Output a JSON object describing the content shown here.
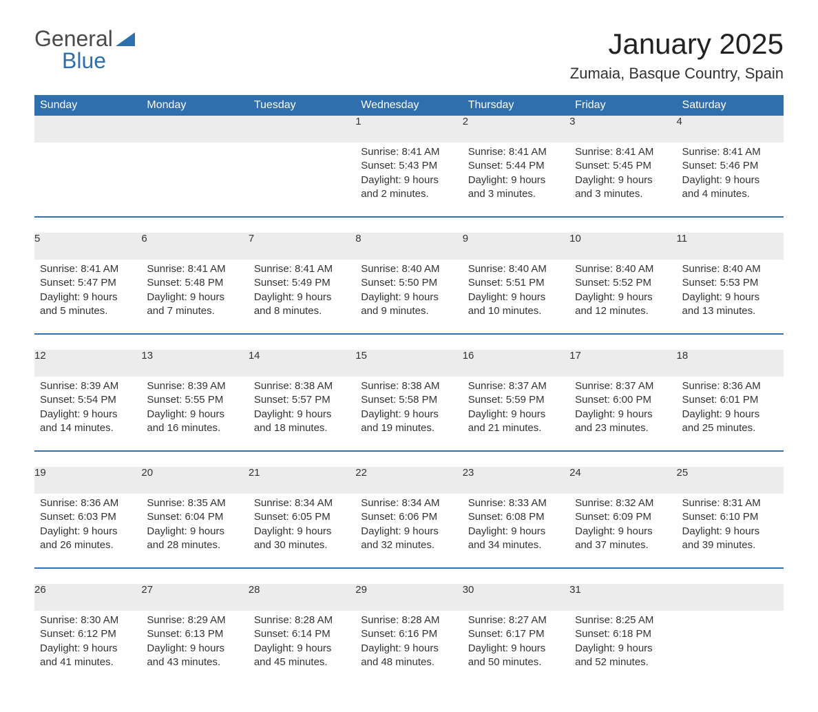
{
  "brand": {
    "general": "General",
    "blue": "Blue",
    "logo_color": "#2f6fad"
  },
  "title": "January 2025",
  "location": "Zumaia, Basque Country, Spain",
  "colors": {
    "header_bg": "#2f6fad",
    "header_text": "#ffffff",
    "daynum_bg": "#ececec",
    "daynum_text": "#555555",
    "body_text": "#333333",
    "rule": "#2f6fad",
    "page_bg": "#ffffff"
  },
  "weekdays": [
    "Sunday",
    "Monday",
    "Tuesday",
    "Wednesday",
    "Thursday",
    "Friday",
    "Saturday"
  ],
  "labels": {
    "sunrise": "Sunrise",
    "sunset": "Sunset",
    "daylight": "Daylight"
  },
  "weeks": [
    [
      null,
      null,
      null,
      {
        "n": "1",
        "sunrise": "8:41 AM",
        "sunset": "5:43 PM",
        "daylight": "9 hours and 2 minutes."
      },
      {
        "n": "2",
        "sunrise": "8:41 AM",
        "sunset": "5:44 PM",
        "daylight": "9 hours and 3 minutes."
      },
      {
        "n": "3",
        "sunrise": "8:41 AM",
        "sunset": "5:45 PM",
        "daylight": "9 hours and 3 minutes."
      },
      {
        "n": "4",
        "sunrise": "8:41 AM",
        "sunset": "5:46 PM",
        "daylight": "9 hours and 4 minutes."
      }
    ],
    [
      {
        "n": "5",
        "sunrise": "8:41 AM",
        "sunset": "5:47 PM",
        "daylight": "9 hours and 5 minutes."
      },
      {
        "n": "6",
        "sunrise": "8:41 AM",
        "sunset": "5:48 PM",
        "daylight": "9 hours and 7 minutes."
      },
      {
        "n": "7",
        "sunrise": "8:41 AM",
        "sunset": "5:49 PM",
        "daylight": "9 hours and 8 minutes."
      },
      {
        "n": "8",
        "sunrise": "8:40 AM",
        "sunset": "5:50 PM",
        "daylight": "9 hours and 9 minutes."
      },
      {
        "n": "9",
        "sunrise": "8:40 AM",
        "sunset": "5:51 PM",
        "daylight": "9 hours and 10 minutes."
      },
      {
        "n": "10",
        "sunrise": "8:40 AM",
        "sunset": "5:52 PM",
        "daylight": "9 hours and 12 minutes."
      },
      {
        "n": "11",
        "sunrise": "8:40 AM",
        "sunset": "5:53 PM",
        "daylight": "9 hours and 13 minutes."
      }
    ],
    [
      {
        "n": "12",
        "sunrise": "8:39 AM",
        "sunset": "5:54 PM",
        "daylight": "9 hours and 14 minutes."
      },
      {
        "n": "13",
        "sunrise": "8:39 AM",
        "sunset": "5:55 PM",
        "daylight": "9 hours and 16 minutes."
      },
      {
        "n": "14",
        "sunrise": "8:38 AM",
        "sunset": "5:57 PM",
        "daylight": "9 hours and 18 minutes."
      },
      {
        "n": "15",
        "sunrise": "8:38 AM",
        "sunset": "5:58 PM",
        "daylight": "9 hours and 19 minutes."
      },
      {
        "n": "16",
        "sunrise": "8:37 AM",
        "sunset": "5:59 PM",
        "daylight": "9 hours and 21 minutes."
      },
      {
        "n": "17",
        "sunrise": "8:37 AM",
        "sunset": "6:00 PM",
        "daylight": "9 hours and 23 minutes."
      },
      {
        "n": "18",
        "sunrise": "8:36 AM",
        "sunset": "6:01 PM",
        "daylight": "9 hours and 25 minutes."
      }
    ],
    [
      {
        "n": "19",
        "sunrise": "8:36 AM",
        "sunset": "6:03 PM",
        "daylight": "9 hours and 26 minutes."
      },
      {
        "n": "20",
        "sunrise": "8:35 AM",
        "sunset": "6:04 PM",
        "daylight": "9 hours and 28 minutes."
      },
      {
        "n": "21",
        "sunrise": "8:34 AM",
        "sunset": "6:05 PM",
        "daylight": "9 hours and 30 minutes."
      },
      {
        "n": "22",
        "sunrise": "8:34 AM",
        "sunset": "6:06 PM",
        "daylight": "9 hours and 32 minutes."
      },
      {
        "n": "23",
        "sunrise": "8:33 AM",
        "sunset": "6:08 PM",
        "daylight": "9 hours and 34 minutes."
      },
      {
        "n": "24",
        "sunrise": "8:32 AM",
        "sunset": "6:09 PM",
        "daylight": "9 hours and 37 minutes."
      },
      {
        "n": "25",
        "sunrise": "8:31 AM",
        "sunset": "6:10 PM",
        "daylight": "9 hours and 39 minutes."
      }
    ],
    [
      {
        "n": "26",
        "sunrise": "8:30 AM",
        "sunset": "6:12 PM",
        "daylight": "9 hours and 41 minutes."
      },
      {
        "n": "27",
        "sunrise": "8:29 AM",
        "sunset": "6:13 PM",
        "daylight": "9 hours and 43 minutes."
      },
      {
        "n": "28",
        "sunrise": "8:28 AM",
        "sunset": "6:14 PM",
        "daylight": "9 hours and 45 minutes."
      },
      {
        "n": "29",
        "sunrise": "8:28 AM",
        "sunset": "6:16 PM",
        "daylight": "9 hours and 48 minutes."
      },
      {
        "n": "30",
        "sunrise": "8:27 AM",
        "sunset": "6:17 PM",
        "daylight": "9 hours and 50 minutes."
      },
      {
        "n": "31",
        "sunrise": "8:25 AM",
        "sunset": "6:18 PM",
        "daylight": "9 hours and 52 minutes."
      },
      null
    ]
  ]
}
